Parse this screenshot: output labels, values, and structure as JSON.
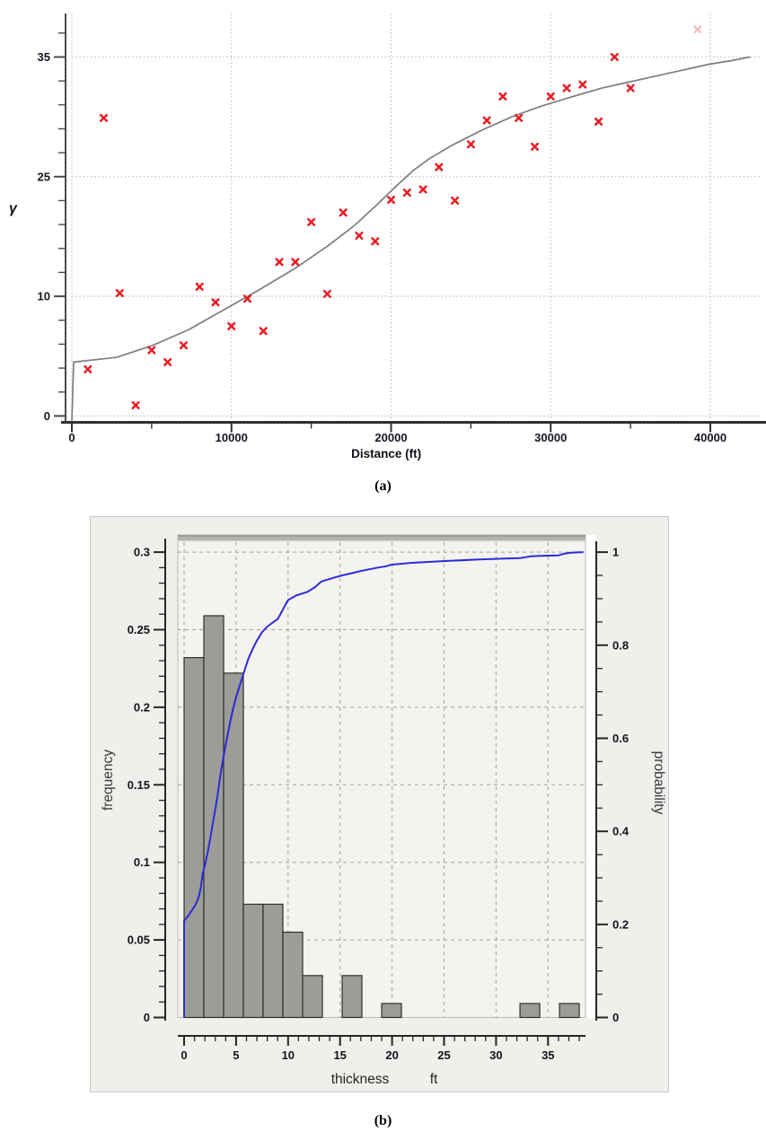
{
  "captions": {
    "a": "(a)",
    "b": "(b)"
  },
  "chart_data": [
    {
      "id": "variogram",
      "type": "scatter",
      "xlabel": "Distance (ft)",
      "ylabel": "γ",
      "x_ticks": [
        0,
        10000,
        20000,
        30000,
        40000
      ],
      "x_tick_labels": [
        "0",
        "10000",
        "20000",
        "30000",
        "40000"
      ],
      "x_minor_ticks": [
        5000,
        15000,
        25000,
        35000
      ],
      "y_ticks": [
        0,
        10,
        25,
        35
      ],
      "y_tick_labels": [
        "0",
        "10",
        "25",
        "35"
      ],
      "y_ticks_equally_spaced": true,
      "xlim": [
        0,
        43400
      ],
      "grid": "dotted",
      "marker": "x-cross",
      "marker_color": "#e81e25",
      "faint_marker_color": "#f4b9ba",
      "curve_color": "#7d7d7d",
      "axis_color": "#3c3c3c",
      "text_color": "#15151f",
      "grid_color": "#bdbdbd",
      "points": [
        [
          1000,
          3.9
        ],
        [
          2000,
          29.9
        ],
        [
          3000,
          10.4
        ],
        [
          4000,
          0.9
        ],
        [
          5000,
          5.5
        ],
        [
          6000,
          4.5
        ],
        [
          7000,
          5.9
        ],
        [
          8000,
          11.2
        ],
        [
          9000,
          9.5
        ],
        [
          10000,
          7.5
        ],
        [
          11000,
          9.8
        ],
        [
          12000,
          7.1
        ],
        [
          13000,
          14.3
        ],
        [
          14000,
          14.3
        ],
        [
          15000,
          19.3
        ],
        [
          16000,
          10.3
        ],
        [
          17000,
          20.5
        ],
        [
          18000,
          17.6
        ],
        [
          19000,
          16.9
        ],
        [
          20000,
          22.1
        ],
        [
          21000,
          23.0
        ],
        [
          22000,
          23.4
        ],
        [
          23000,
          25.8
        ],
        [
          24000,
          22.0
        ],
        [
          25000,
          27.7
        ],
        [
          26000,
          29.7
        ],
        [
          27000,
          31.7
        ],
        [
          28000,
          29.9
        ],
        [
          29000,
          27.5
        ],
        [
          30000,
          31.7
        ],
        [
          31000,
          32.4
        ],
        [
          32000,
          32.7
        ],
        [
          33000,
          29.6
        ],
        [
          34000,
          35.0
        ],
        [
          35000,
          32.4
        ]
      ],
      "faint_points": [
        [
          39200,
          37.3
        ]
      ],
      "model_curve": [
        [
          0,
          -0.42
        ],
        [
          110,
          4.5
        ],
        [
          2810,
          4.9
        ],
        [
          5060,
          5.9
        ],
        [
          7310,
          7.2
        ],
        [
          9560,
          8.9
        ],
        [
          11810,
          10.9
        ],
        [
          14060,
          13.6
        ],
        [
          16030,
          16.3
        ],
        [
          17720,
          18.9
        ],
        [
          19130,
          21.5
        ],
        [
          20310,
          23.8
        ],
        [
          21380,
          25.5
        ],
        [
          22390,
          26.5
        ],
        [
          23790,
          27.6
        ],
        [
          25710,
          28.9
        ],
        [
          27560,
          30.0
        ],
        [
          29410,
          30.9
        ],
        [
          31390,
          31.7
        ],
        [
          33190,
          32.4
        ],
        [
          34880,
          32.9
        ],
        [
          36560,
          33.4
        ],
        [
          38250,
          33.9
        ],
        [
          39940,
          34.4
        ],
        [
          41340,
          34.7
        ],
        [
          42470,
          35.0
        ]
      ]
    },
    {
      "id": "thickness-histogram",
      "type": "bar+line",
      "xlabel_word1": "thickness",
      "xlabel_word2": "ft",
      "ylabel_left": "frequency",
      "ylabel_right": "probability",
      "x_tick_labels": [
        "0",
        "5",
        "10",
        "15",
        "20",
        "25",
        "30",
        "35"
      ],
      "x_major_ticks": [
        0,
        5,
        10,
        15,
        20,
        25,
        30,
        35
      ],
      "x_minor_step": 1,
      "x_max_tick": 38,
      "xlim": [
        -0.6,
        38.6
      ],
      "ylim_left": [
        0,
        0.309
      ],
      "ylim_right": [
        0,
        1.03
      ],
      "left_tick_labels": [
        "0",
        "0.05",
        "0.1",
        "0.15",
        "0.2",
        "0.25",
        "0.3"
      ],
      "left_major_ticks": [
        0,
        0.05,
        0.1,
        0.15,
        0.2,
        0.25,
        0.3
      ],
      "left_minor_step": 0.01,
      "right_tick_labels": [
        "0",
        "0.2",
        "0.4",
        "0.6",
        "0.8",
        "1"
      ],
      "right_major_ticks": [
        0,
        0.2,
        0.4,
        0.6,
        0.8,
        1
      ],
      "right_minor_step": 0.05,
      "grid": "dashed",
      "bin_start": 0,
      "bin_width": 1.9,
      "bar_heights": [
        0.232,
        0.259,
        0.222,
        0.073,
        0.073,
        0.055,
        0.027,
        0,
        0.027,
        0,
        0.009,
        0,
        0,
        0,
        0,
        0,
        0,
        0.009,
        0,
        0.009
      ],
      "bar_fill": "#9c9c99",
      "bar_stroke": "#2f2f2d",
      "cdf_color": "#2b2bd8",
      "grid_color": "#a2a29f",
      "axis_color": "#262626",
      "text_color": "#14141d",
      "title_color": "#3a3a3a",
      "plot_bg": "#f4f3f0",
      "cdf": [
        [
          0,
          0
        ],
        [
          0,
          0.208
        ],
        [
          0.4,
          0.218
        ],
        [
          0.8,
          0.232
        ],
        [
          1.1,
          0.242
        ],
        [
          1.4,
          0.258
        ],
        [
          1.6,
          0.278
        ],
        [
          1.8,
          0.31
        ],
        [
          2.0,
          0.327
        ],
        [
          2.3,
          0.358
        ],
        [
          2.6,
          0.395
        ],
        [
          2.9,
          0.435
        ],
        [
          3.2,
          0.475
        ],
        [
          3.5,
          0.522
        ],
        [
          3.8,
          0.562
        ],
        [
          4.1,
          0.598
        ],
        [
          4.4,
          0.632
        ],
        [
          4.7,
          0.662
        ],
        [
          5.0,
          0.688
        ],
        [
          5.3,
          0.71
        ],
        [
          5.6,
          0.73
        ],
        [
          5.9,
          0.752
        ],
        [
          6.2,
          0.772
        ],
        [
          6.6,
          0.792
        ],
        [
          7.0,
          0.81
        ],
        [
          7.5,
          0.828
        ],
        [
          8.0,
          0.84
        ],
        [
          8.6,
          0.85
        ],
        [
          9.0,
          0.856
        ],
        [
          9.3,
          0.868
        ],
        [
          9.7,
          0.885
        ],
        [
          10.0,
          0.897
        ],
        [
          10.8,
          0.907
        ],
        [
          11.9,
          0.915
        ],
        [
          12.6,
          0.925
        ],
        [
          13.2,
          0.937
        ],
        [
          14.4,
          0.945
        ],
        [
          15.2,
          0.95
        ],
        [
          16.2,
          0.955
        ],
        [
          17.1,
          0.96
        ],
        [
          18.7,
          0.967
        ],
        [
          19.5,
          0.97
        ],
        [
          19.9,
          0.973
        ],
        [
          21.9,
          0.977
        ],
        [
          25.3,
          0.981
        ],
        [
          28.1,
          0.984
        ],
        [
          30.5,
          0.986
        ],
        [
          32.3,
          0.987
        ],
        [
          33.3,
          0.991
        ],
        [
          34.2,
          0.992
        ],
        [
          36.0,
          0.993
        ],
        [
          36.6,
          0.997
        ],
        [
          37.3,
          0.999
        ],
        [
          38.4,
          1.0
        ]
      ]
    }
  ]
}
